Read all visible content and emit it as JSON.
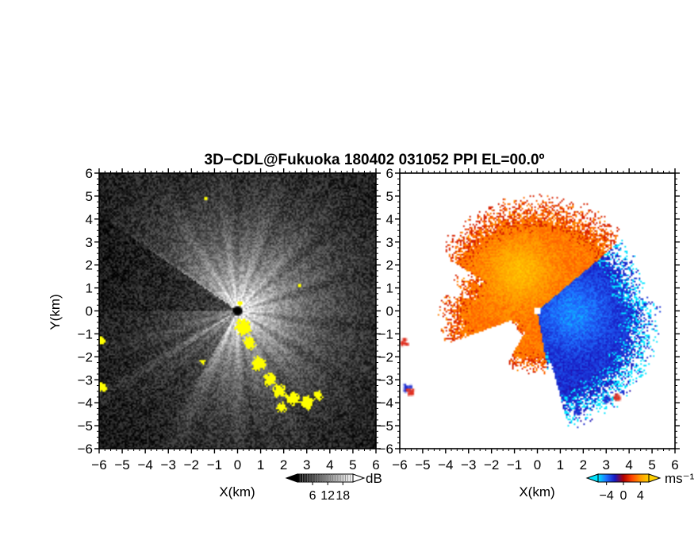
{
  "figure": {
    "title": "3D−CDL@Fukuoka 180402 031052 PPI EL=00.0º"
  },
  "chart_data": [
    {
      "type": "heatmap",
      "panel": "left",
      "quantity": "signal intensity",
      "xlabel": "X(km)",
      "ylabel": "Y(km)",
      "xlim": [
        -6,
        6
      ],
      "ylim": [
        -6,
        6
      ],
      "xticks": [
        "−6",
        "−5",
        "−4",
        "−3",
        "−2",
        "−1",
        "0",
        "1",
        "2",
        "3",
        "4",
        "5",
        "6"
      ],
      "yticks": [
        "6",
        "5",
        "4",
        "3",
        "2",
        "1",
        "0",
        "−1",
        "−2",
        "−3",
        "−4",
        "−5",
        "−6"
      ],
      "colorbar": {
        "unit": "dB",
        "ticks": [
          "6",
          "12",
          "18"
        ],
        "range": [
          0,
          22
        ],
        "colors": [
          "#000000",
          "#ffffff"
        ]
      },
      "highlight_color": "#ffff00",
      "background_color": "#141414"
    },
    {
      "type": "heatmap",
      "panel": "right",
      "quantity": "radial velocity",
      "xlabel": "X(km)",
      "ylabel": "",
      "xlim": [
        -6,
        6
      ],
      "ylim": [
        -6,
        6
      ],
      "xticks": [
        "−6",
        "−5",
        "−4",
        "−3",
        "−2",
        "−1",
        "0",
        "1",
        "2",
        "3",
        "4",
        "5",
        "6"
      ],
      "yticks": [
        "6",
        "5",
        "4",
        "3",
        "2",
        "1",
        "0",
        "−1",
        "−2",
        "−3",
        "−4",
        "−5",
        "−6"
      ],
      "colorbar": {
        "unit": "ms⁻¹",
        "ticks": [
          "−4",
          "0",
          "4"
        ],
        "range": [
          -6,
          6
        ],
        "colors": [
          "#00e5ff",
          "#1f6fff",
          "#1818c0",
          "#b00000",
          "#ff4400",
          "#ff9a00",
          "#ffd000"
        ]
      },
      "background_color": "#ffffff"
    }
  ]
}
